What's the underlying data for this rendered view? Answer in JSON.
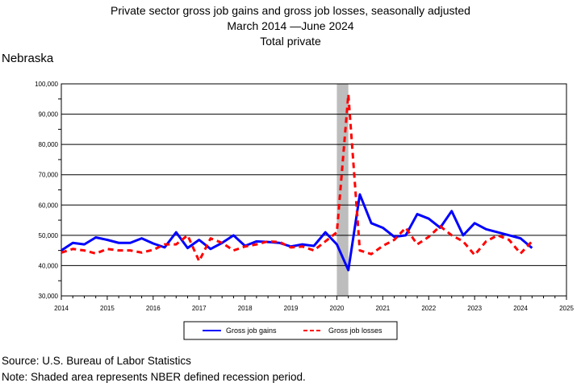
{
  "header": {
    "title": "Private sector gross job gains and gross job losses, seasonally adjusted",
    "date_range_start": "March 2014",
    "date_range_dash": "—",
    "date_range_end": "June 2024",
    "subtitle": "Total private"
  },
  "region_label": "Nebraska",
  "footer": {
    "source": "Source: U.S. Bureau of Labor Statistics",
    "note": "Note: Shaded area represents NBER defined recession period."
  },
  "colors": {
    "gains": "#0000ff",
    "losses": "#ff0000",
    "recession": "#bdbdbd",
    "grid": "#000000"
  },
  "chart_data": {
    "type": "line",
    "xlabel": "",
    "ylabel": "",
    "xlim": [
      2014,
      2025
    ],
    "ylim": [
      30000,
      100000
    ],
    "grid": true,
    "legend_position": "bottom",
    "x_ticks": [
      "2014",
      "2015",
      "2016",
      "2017",
      "2018",
      "2019",
      "2020",
      "2021",
      "2022",
      "2023",
      "2024",
      "2025"
    ],
    "y_ticks": [
      "30,000",
      "40,000",
      "50,000",
      "60,000",
      "70,000",
      "80,000",
      "90,000",
      "100,000"
    ],
    "recession": {
      "start": 2020.0,
      "end": 2020.25
    },
    "x": [
      2014.0,
      2014.25,
      2014.5,
      2014.75,
      2015.0,
      2015.25,
      2015.5,
      2015.75,
      2016.0,
      2016.25,
      2016.5,
      2016.75,
      2017.0,
      2017.25,
      2017.5,
      2017.75,
      2018.0,
      2018.25,
      2018.5,
      2018.75,
      2019.0,
      2019.25,
      2019.5,
      2019.75,
      2020.0,
      2020.25,
      2020.5,
      2020.75,
      2021.0,
      2021.25,
      2021.5,
      2021.75,
      2022.0,
      2022.25,
      2022.5,
      2022.75,
      2023.0,
      2023.25,
      2023.5,
      2023.75,
      2024.0,
      2024.25
    ],
    "series": [
      {
        "name": "Gross job gains",
        "style": "solid",
        "values": [
          45000,
          47500,
          47000,
          49300,
          48500,
          47500,
          47500,
          49000,
          47300,
          46000,
          51000,
          45800,
          48500,
          45500,
          47500,
          50000,
          46500,
          48000,
          47800,
          47500,
          46300,
          47000,
          46500,
          51000,
          47000,
          38500,
          63500,
          54000,
          52500,
          49500,
          50000,
          57000,
          55500,
          52500,
          58000,
          50000,
          54000,
          52000,
          51000,
          50000,
          49000,
          45800
        ]
      },
      {
        "name": "Gross job losses",
        "style": "dashed",
        "values": [
          44300,
          45500,
          45000,
          44000,
          45500,
          45000,
          45000,
          44300,
          45200,
          47000,
          47000,
          50000,
          41500,
          49000,
          47500,
          45000,
          46300,
          47000,
          48000,
          47800,
          46000,
          46300,
          45000,
          48000,
          51000,
          96500,
          45000,
          43800,
          46500,
          48500,
          52500,
          47000,
          49500,
          53000,
          50000,
          48000,
          43500,
          48000,
          50000,
          48500,
          44000,
          48000
        ]
      }
    ]
  }
}
